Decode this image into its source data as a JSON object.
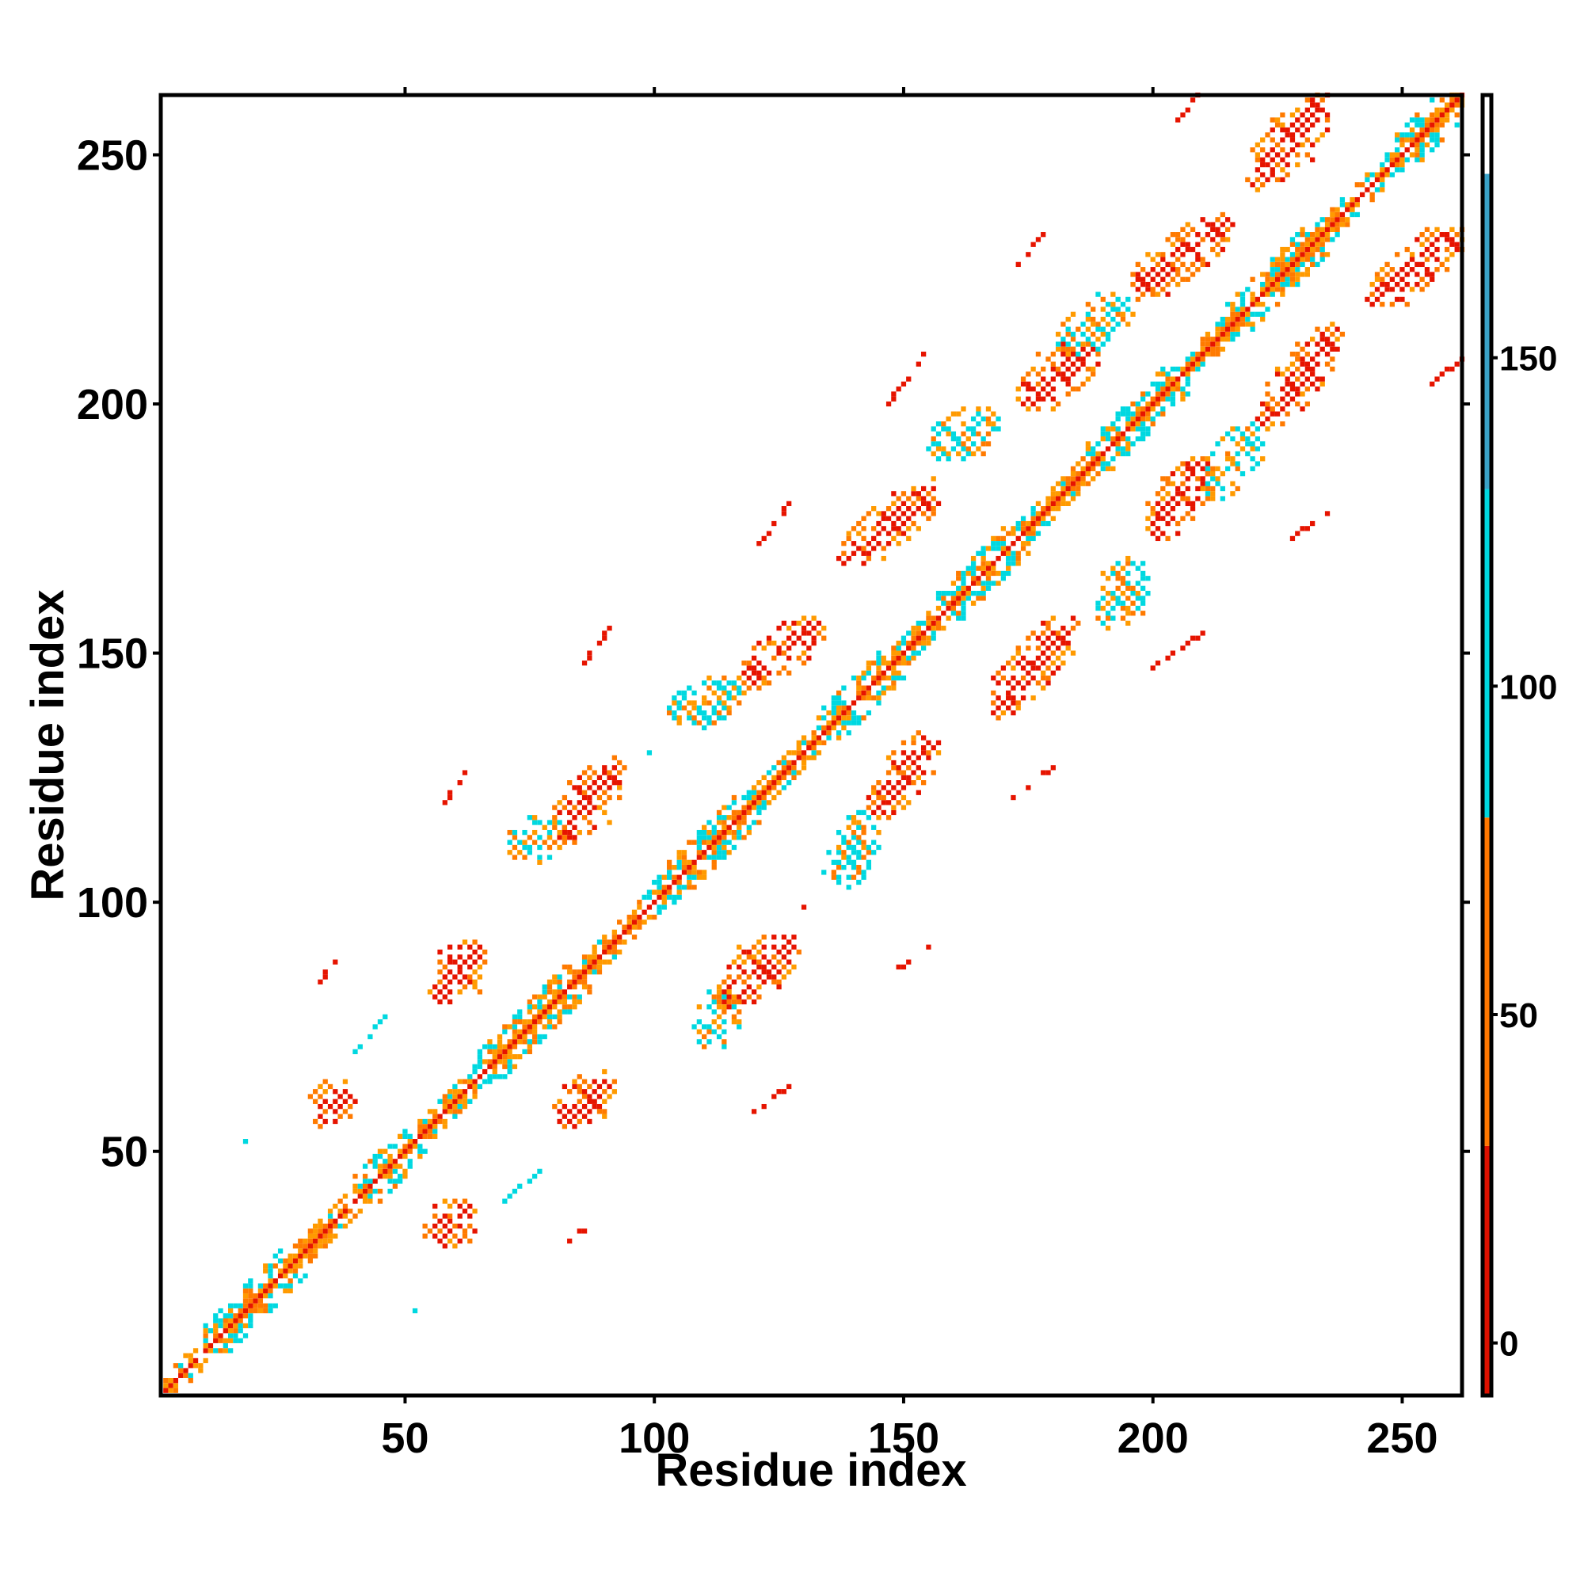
{
  "chart_data": {
    "type": "heatmap",
    "title": "",
    "xlabel": "Residue index",
    "ylabel": "Residue index",
    "xlim": [
      1,
      262
    ],
    "ylim": [
      1,
      262
    ],
    "x_ticks": [
      50,
      100,
      150,
      200,
      250
    ],
    "y_ticks": [
      50,
      100,
      150,
      200,
      250
    ],
    "grid": false,
    "colorbar": {
      "range": [
        -8,
        190
      ],
      "ticks": [
        0,
        50,
        100,
        150
      ],
      "bands": [
        {
          "from": -8,
          "to": 30,
          "color": "#dd1100"
        },
        {
          "from": 30,
          "to": 80,
          "color": "#ff7700"
        },
        {
          "from": 80,
          "to": 130,
          "color": "#00d8e0"
        },
        {
          "from": 130,
          "to": 178,
          "color": "#3aa2c8"
        },
        {
          "from": 178,
          "to": 190,
          "color": "#ffffff"
        }
      ]
    },
    "colors": {
      "low": "#e61400",
      "mid": "#ff7a00",
      "amber": "#ff9a00",
      "high": "#00d8e0"
    },
    "diagonal_segments": [
      [
        2,
        8,
        "mix"
      ],
      [
        10,
        25,
        "cyan"
      ],
      [
        26,
        38,
        "mix"
      ],
      [
        40,
        52,
        "cyan"
      ],
      [
        53,
        64,
        "mix"
      ],
      [
        65,
        84,
        "mix-cyan"
      ],
      [
        85,
        98,
        "mix"
      ],
      [
        99,
        116,
        "cyan"
      ],
      [
        117,
        132,
        "mix"
      ],
      [
        133,
        145,
        "cyan"
      ],
      [
        146,
        156,
        "mix"
      ],
      [
        157,
        170,
        "cyan"
      ],
      [
        171,
        186,
        "mix"
      ],
      [
        187,
        202,
        "cyan"
      ],
      [
        203,
        212,
        "mix"
      ],
      [
        213,
        230,
        "cyan"
      ],
      [
        231,
        243,
        "mix"
      ],
      [
        244,
        256,
        "cyan"
      ],
      [
        257,
        262,
        "mix"
      ]
    ],
    "contact_blobs": [
      {
        "x1": 32,
        "y1": 56,
        "x2": 39,
        "y2": 63,
        "kind": "red"
      },
      {
        "x1": 55,
        "y1": 32,
        "x2": 63,
        "y2": 39,
        "kind": "red"
      },
      {
        "x1": 56,
        "y1": 81,
        "x2": 65,
        "y2": 91,
        "kind": "red"
      },
      {
        "x1": 81,
        "y1": 56,
        "x2": 91,
        "y2": 65,
        "kind": "red"
      },
      {
        "x1": 80,
        "y1": 112,
        "x2": 93,
        "y2": 128,
        "kind": "red"
      },
      {
        "x1": 72,
        "y1": 109,
        "x2": 81,
        "y2": 116,
        "kind": "cyan"
      },
      {
        "x1": 114,
        "y1": 80,
        "x2": 128,
        "y2": 93,
        "kind": "red"
      },
      {
        "x1": 109,
        "y1": 72,
        "x2": 116,
        "y2": 81,
        "kind": "cyan"
      },
      {
        "x1": 118,
        "y1": 144,
        "x2": 133,
        "y2": 156,
        "kind": "red"
      },
      {
        "x1": 104,
        "y1": 137,
        "x2": 117,
        "y2": 143,
        "kind": "cyan"
      },
      {
        "x1": 144,
        "y1": 118,
        "x2": 156,
        "y2": 133,
        "kind": "red"
      },
      {
        "x1": 137,
        "y1": 104,
        "x2": 143,
        "y2": 117,
        "kind": "cyan"
      },
      {
        "x1": 138,
        "y1": 168,
        "x2": 157,
        "y2": 184,
        "kind": "red"
      },
      {
        "x1": 168,
        "y1": 138,
        "x2": 184,
        "y2": 157,
        "kind": "red"
      },
      {
        "x1": 174,
        "y1": 200,
        "x2": 188,
        "y2": 211,
        "kind": "red"
      },
      {
        "x1": 156,
        "y1": 190,
        "x2": 168,
        "y2": 198,
        "kind": "cyan"
      },
      {
        "x1": 200,
        "y1": 174,
        "x2": 211,
        "y2": 188,
        "kind": "red"
      },
      {
        "x1": 190,
        "y1": 156,
        "x2": 198,
        "y2": 168,
        "kind": "cyan"
      },
      {
        "x1": 196,
        "y1": 222,
        "x2": 215,
        "y2": 237,
        "kind": "red"
      },
      {
        "x1": 182,
        "y1": 211,
        "x2": 195,
        "y2": 221,
        "kind": "cyan"
      },
      {
        "x1": 222,
        "y1": 196,
        "x2": 237,
        "y2": 215,
        "kind": "red"
      },
      {
        "x1": 211,
        "y1": 182,
        "x2": 221,
        "y2": 195,
        "kind": "cyan"
      },
      {
        "x1": 220,
        "y1": 244,
        "x2": 235,
        "y2": 262,
        "kind": "red"
      },
      {
        "x1": 244,
        "y1": 220,
        "x2": 262,
        "y2": 235,
        "kind": "red"
      }
    ],
    "sparse_contacts": [
      {
        "x1": 32,
        "y1": 83,
        "x2": 36,
        "y2": 88,
        "kind": "red"
      },
      {
        "x1": 83,
        "y1": 32,
        "x2": 88,
        "y2": 36,
        "kind": "red"
      },
      {
        "x1": 58,
        "y1": 120,
        "x2": 63,
        "y2": 127,
        "kind": "red"
      },
      {
        "x1": 120,
        "y1": 58,
        "x2": 127,
        "y2": 63,
        "kind": "red"
      },
      {
        "x1": 86,
        "y1": 148,
        "x2": 91,
        "y2": 155,
        "kind": "red"
      },
      {
        "x1": 148,
        "y1": 86,
        "x2": 155,
        "y2": 91,
        "kind": "red"
      },
      {
        "x1": 121,
        "y1": 172,
        "x2": 127,
        "y2": 180,
        "kind": "red"
      },
      {
        "x1": 172,
        "y1": 121,
        "x2": 180,
        "y2": 127,
        "kind": "red"
      },
      {
        "x1": 147,
        "y1": 200,
        "x2": 154,
        "y2": 210,
        "kind": "red"
      },
      {
        "x1": 200,
        "y1": 147,
        "x2": 210,
        "y2": 154,
        "kind": "red"
      },
      {
        "x1": 173,
        "y1": 228,
        "x2": 179,
        "y2": 236,
        "kind": "red"
      },
      {
        "x1": 228,
        "y1": 173,
        "x2": 236,
        "y2": 179,
        "kind": "red"
      },
      {
        "x1": 204,
        "y1": 256,
        "x2": 209,
        "y2": 262,
        "kind": "red"
      },
      {
        "x1": 256,
        "y1": 204,
        "x2": 262,
        "y2": 209,
        "kind": "red"
      },
      {
        "x1": 40,
        "y1": 70,
        "x2": 46,
        "y2": 77,
        "kind": "cyan"
      },
      {
        "x1": 70,
        "y1": 40,
        "x2": 77,
        "y2": 46,
        "kind": "cyan"
      }
    ],
    "isolated_points": [
      {
        "x": 18,
        "y": 52,
        "kind": "cyan"
      },
      {
        "x": 52,
        "y": 18,
        "kind": "cyan"
      },
      {
        "x": 99,
        "y": 130,
        "kind": "cyan"
      },
      {
        "x": 130,
        "y": 99,
        "kind": "red"
      },
      {
        "x": 134,
        "y": 106,
        "kind": "cyan"
      },
      {
        "x": 43,
        "y": 44,
        "kind": "cyan"
      }
    ]
  }
}
